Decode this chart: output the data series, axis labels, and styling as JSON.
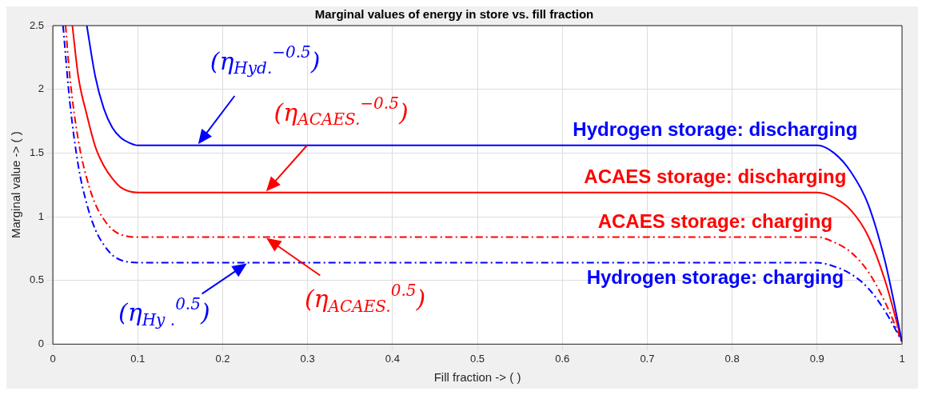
{
  "chart_data": {
    "type": "line",
    "title": "Marginal values of energy in store vs. fill fraction",
    "xlabel": "Fill fraction -> ( )",
    "ylabel": "Marginal value -> ( )",
    "xlim": [
      0,
      1
    ],
    "xticks": [
      0,
      0.1,
      0.2,
      0.3,
      0.4,
      0.5,
      0.6,
      0.7,
      0.8,
      0.9,
      1
    ],
    "ylim": [
      0,
      2.5
    ],
    "yticks": [
      0,
      0.5,
      1,
      1.5,
      2,
      2.5
    ],
    "grid": true,
    "legend": false,
    "marker": "none",
    "series": [
      {
        "name": "Hydrogen storage: discharging",
        "color": "#0000ff",
        "line_style": "solid",
        "x": [
          0.04,
          0.05,
          0.06,
          0.07,
          0.08,
          0.09,
          0.1,
          0.9,
          0.92,
          0.94,
          0.96,
          0.98,
          1
        ],
        "values": [
          2.5,
          2.1,
          1.85,
          1.7,
          1.62,
          1.58,
          1.56,
          1.56,
          1.5,
          1.35,
          1.1,
          0.65,
          0.02
        ]
      },
      {
        "name": "ACAES storage: discharging",
        "color": "#ff0000",
        "line_style": "solid",
        "x": [
          0.023,
          0.03,
          0.04,
          0.05,
          0.06,
          0.07,
          0.08,
          0.1,
          0.9,
          0.92,
          0.94,
          0.96,
          0.98,
          1
        ],
        "values": [
          2.5,
          2.1,
          1.8,
          1.55,
          1.4,
          1.3,
          1.23,
          1.19,
          1.19,
          1.15,
          1.05,
          0.85,
          0.5,
          0.02
        ]
      },
      {
        "name": "ACAES storage: charging",
        "color": "#ff0000",
        "line_style": "dashed",
        "x": [
          0.015,
          0.02,
          0.03,
          0.04,
          0.05,
          0.06,
          0.07,
          0.08,
          0.1,
          0.9,
          0.92,
          0.94,
          0.96,
          0.98,
          1
        ],
        "values": [
          2.5,
          2.1,
          1.6,
          1.3,
          1.1,
          0.98,
          0.9,
          0.86,
          0.84,
          0.84,
          0.8,
          0.72,
          0.57,
          0.33,
          0.02
        ]
      },
      {
        "name": "Hydrogen storage: charging",
        "color": "#0000ff",
        "line_style": "dashed",
        "x": [
          0.012,
          0.02,
          0.03,
          0.04,
          0.05,
          0.06,
          0.07,
          0.08,
          0.1,
          0.9,
          0.92,
          0.94,
          0.96,
          0.98,
          1
        ],
        "values": [
          2.5,
          1.9,
          1.4,
          1.1,
          0.9,
          0.78,
          0.7,
          0.66,
          0.64,
          0.64,
          0.61,
          0.55,
          0.44,
          0.26,
          0.02
        ]
      }
    ],
    "annotations": [
      {
        "text": "(η$_{Hyd.}$$^{−0.5}$)",
        "x": 0.17,
        "y": 1.56
      },
      {
        "text": "(η$_{ACAES.}$$^{−0.5}$)",
        "x": 0.25,
        "y": 1.19
      },
      {
        "text": "(η$_{ACAES.}$$^{0.5}$)",
        "x": 0.25,
        "y": 0.84
      },
      {
        "text": "(η$_{Hy .}$$^{0.5}$)",
        "x": 0.23,
        "y": 0.64
      }
    ]
  }
}
